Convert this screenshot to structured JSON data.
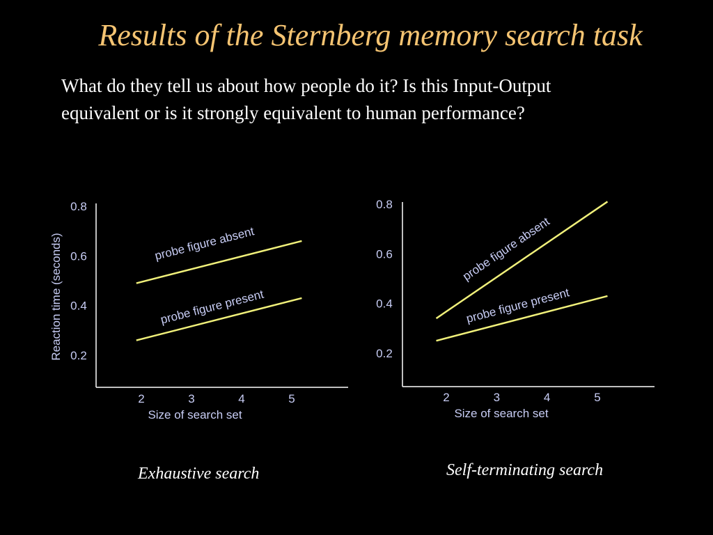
{
  "slide": {
    "title": "Results of the Sternberg memory search task",
    "subtitle_lines": [
      "What do they tell us about how people do it?  Is this Input-Output",
      "equivalent or is it strongly equivalent to human performance?"
    ]
  },
  "colors": {
    "title": "#f5c472",
    "line": "#f0f07a",
    "axis_text": "#c8cdf5",
    "axis": "#ffffff"
  },
  "chart_data": [
    {
      "type": "line",
      "caption": "Exhaustive search",
      "xlabel": "Size of search set",
      "ylabel": "Reaction time (seconds)",
      "x_ticks": [
        2,
        3,
        4,
        5
      ],
      "y_ticks": [
        0.2,
        0.4,
        0.6,
        0.8
      ],
      "series": [
        {
          "name": "probe figure absent",
          "x": [
            1.9,
            5.2
          ],
          "y": [
            0.49,
            0.66
          ]
        },
        {
          "name": "probe figure present",
          "x": [
            1.9,
            5.2
          ],
          "y": [
            0.26,
            0.43
          ]
        }
      ]
    },
    {
      "type": "line",
      "caption": "Self-terminating search",
      "xlabel": "Size of search set",
      "ylabel": "",
      "x_ticks": [
        2,
        3,
        4,
        5
      ],
      "y_ticks": [
        0.2,
        0.4,
        0.6,
        0.8
      ],
      "series": [
        {
          "name": "probe figure absent",
          "x": [
            1.8,
            5.2
          ],
          "y": [
            0.34,
            0.81
          ]
        },
        {
          "name": "probe figure present",
          "x": [
            1.8,
            5.2
          ],
          "y": [
            0.25,
            0.43
          ]
        }
      ]
    }
  ]
}
